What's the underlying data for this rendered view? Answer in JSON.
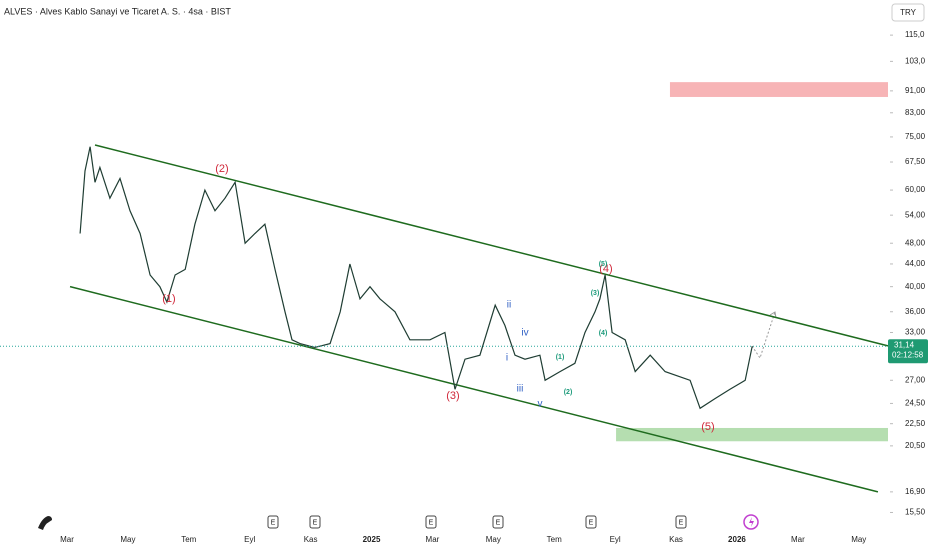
{
  "header": {
    "title": "ALVES · Alves Kablo Sanayi ve Ticaret A. S. · 4sa · BIST",
    "currency": "TRY"
  },
  "chart_data": {
    "type": "line",
    "log_scale": true,
    "price_tag": {
      "value": 31.14,
      "label": "31,14"
    },
    "countdown": "02:12:58",
    "xlim": [
      -2.2,
      26.96
    ],
    "ylim": [
      14.4,
      130.5
    ],
    "xticks": [
      {
        "value": 0,
        "label": "Mar"
      },
      {
        "value": 2,
        "label": "May"
      },
      {
        "value": 4,
        "label": "Tem"
      },
      {
        "value": 6,
        "label": "Eyl"
      },
      {
        "value": 8,
        "label": "Kas"
      },
      {
        "value": 10,
        "label": "2025"
      },
      {
        "value": 12,
        "label": "Mar"
      },
      {
        "value": 14,
        "label": "May"
      },
      {
        "value": 16,
        "label": "Tem"
      },
      {
        "value": 18,
        "label": "Eyl"
      },
      {
        "value": 20,
        "label": "Kas"
      },
      {
        "value": 22,
        "label": "2026"
      },
      {
        "value": 24,
        "label": "Mar"
      },
      {
        "value": 26,
        "label": "May"
      }
    ],
    "yticks": [
      {
        "value": 115,
        "label": "115,0"
      },
      {
        "value": 103,
        "label": "103,0"
      },
      {
        "value": 91,
        "label": "91,00"
      },
      {
        "value": 83,
        "label": "83,00"
      },
      {
        "value": 75,
        "label": "75,00"
      },
      {
        "value": 67.5,
        "label": "67,50"
      },
      {
        "value": 60,
        "label": "60,00"
      },
      {
        "value": 54,
        "label": "54,00"
      },
      {
        "value": 48,
        "label": "48,00"
      },
      {
        "value": 44,
        "label": "44,00"
      },
      {
        "value": 40,
        "label": "40,00"
      },
      {
        "value": 36,
        "label": "36,00"
      },
      {
        "value": 33,
        "label": "33,00"
      },
      {
        "value": 27,
        "label": "27,00"
      },
      {
        "value": 24.5,
        "label": "24,50"
      },
      {
        "value": 22.5,
        "label": "22,50"
      },
      {
        "value": 20.5,
        "label": "20,50"
      },
      {
        "value": 16.9,
        "label": "16,90"
      },
      {
        "value": 15.5,
        "label": "15,50"
      }
    ],
    "series": [
      {
        "color": "#1f3d33",
        "x": [
          0.43,
          0.59,
          0.76,
          0.92,
          1.08,
          1.41,
          1.74,
          2.07,
          2.4,
          2.73,
          3.05,
          3.28,
          3.55,
          3.88,
          4.2,
          4.53,
          4.86,
          5.19,
          5.52,
          5.85,
          6.17,
          6.5,
          6.83,
          7.16,
          7.39,
          7.65,
          8.14,
          8.64,
          8.97,
          9.29,
          9.62,
          9.95,
          10.28,
          10.77,
          11.26,
          11.92,
          12.41,
          12.74,
          13.07,
          13.56,
          14.06,
          14.38,
          14.71,
          15.04,
          15.53,
          15.7,
          16.19,
          16.68,
          17.01,
          17.34,
          17.5,
          17.67,
          17.9,
          18.33,
          18.66,
          19.15,
          19.64,
          20.46,
          20.79,
          21.28,
          21.77,
          22.27,
          22.5
        ],
        "values": [
          50,
          65,
          72,
          62,
          66,
          58,
          63,
          55,
          50,
          42,
          40,
          37.5,
          42,
          43,
          52,
          60,
          55,
          58,
          62,
          48,
          50,
          52,
          43,
          36,
          32,
          31.5,
          31,
          31.5,
          36,
          44,
          38,
          40,
          38,
          36,
          32,
          32,
          33,
          26,
          29.5,
          30,
          37,
          34,
          30,
          29.5,
          30,
          27,
          28,
          29,
          33,
          36,
          38,
          42,
          33,
          32,
          28,
          30,
          28,
          27,
          24,
          25,
          26,
          27,
          31.14
        ]
      }
    ],
    "channels": [
      {
        "color": "#1e6b1e",
        "x": [
          0.92,
          26.96
        ],
        "values": [
          72.5,
          31.2
        ]
      },
      {
        "color": "#1e6b1e",
        "x": [
          0.1,
          26.63
        ],
        "values": [
          40,
          16.9
        ]
      }
    ],
    "zones": [
      {
        "color": "#f7b4b6",
        "x": [
          19.8,
          26.96
        ],
        "values": [
          94.4,
          88.7
        ]
      },
      {
        "color": "#b5deb0",
        "x": [
          18.03,
          26.96
        ],
        "values": [
          22.1,
          20.9
        ]
      }
    ],
    "wave_labels": [
      {
        "text": "(1)",
        "color": "#d0283a"
      },
      {
        "text": "(2)",
        "color": "#d0283a"
      },
      {
        "text": "(3)",
        "color": "#d0283a"
      },
      {
        "text": "(4)",
        "color": "#d0283a"
      },
      {
        "text": "(5)",
        "color": "#d0283a"
      },
      {
        "text": "i",
        "color": "#2f5fc4"
      },
      {
        "text": "ii",
        "color": "#2f5fc4"
      },
      {
        "text": "iii",
        "color": "#2f5fc4"
      },
      {
        "text": "iv",
        "color": "#2f5fc4"
      },
      {
        "text": "v",
        "color": "#2f5fc4"
      },
      {
        "text": "(1)",
        "color": "#1a9a7a"
      },
      {
        "text": "(2)",
        "color": "#1a9a7a"
      },
      {
        "text": "(3)",
        "color": "#1a9a7a"
      },
      {
        "text": "(4)",
        "color": "#1a9a7a"
      },
      {
        "text": "(5)",
        "color": "#1a9a7a"
      }
    ],
    "events": [
      "E",
      "E",
      "E",
      "E",
      "E",
      "E"
    ]
  }
}
